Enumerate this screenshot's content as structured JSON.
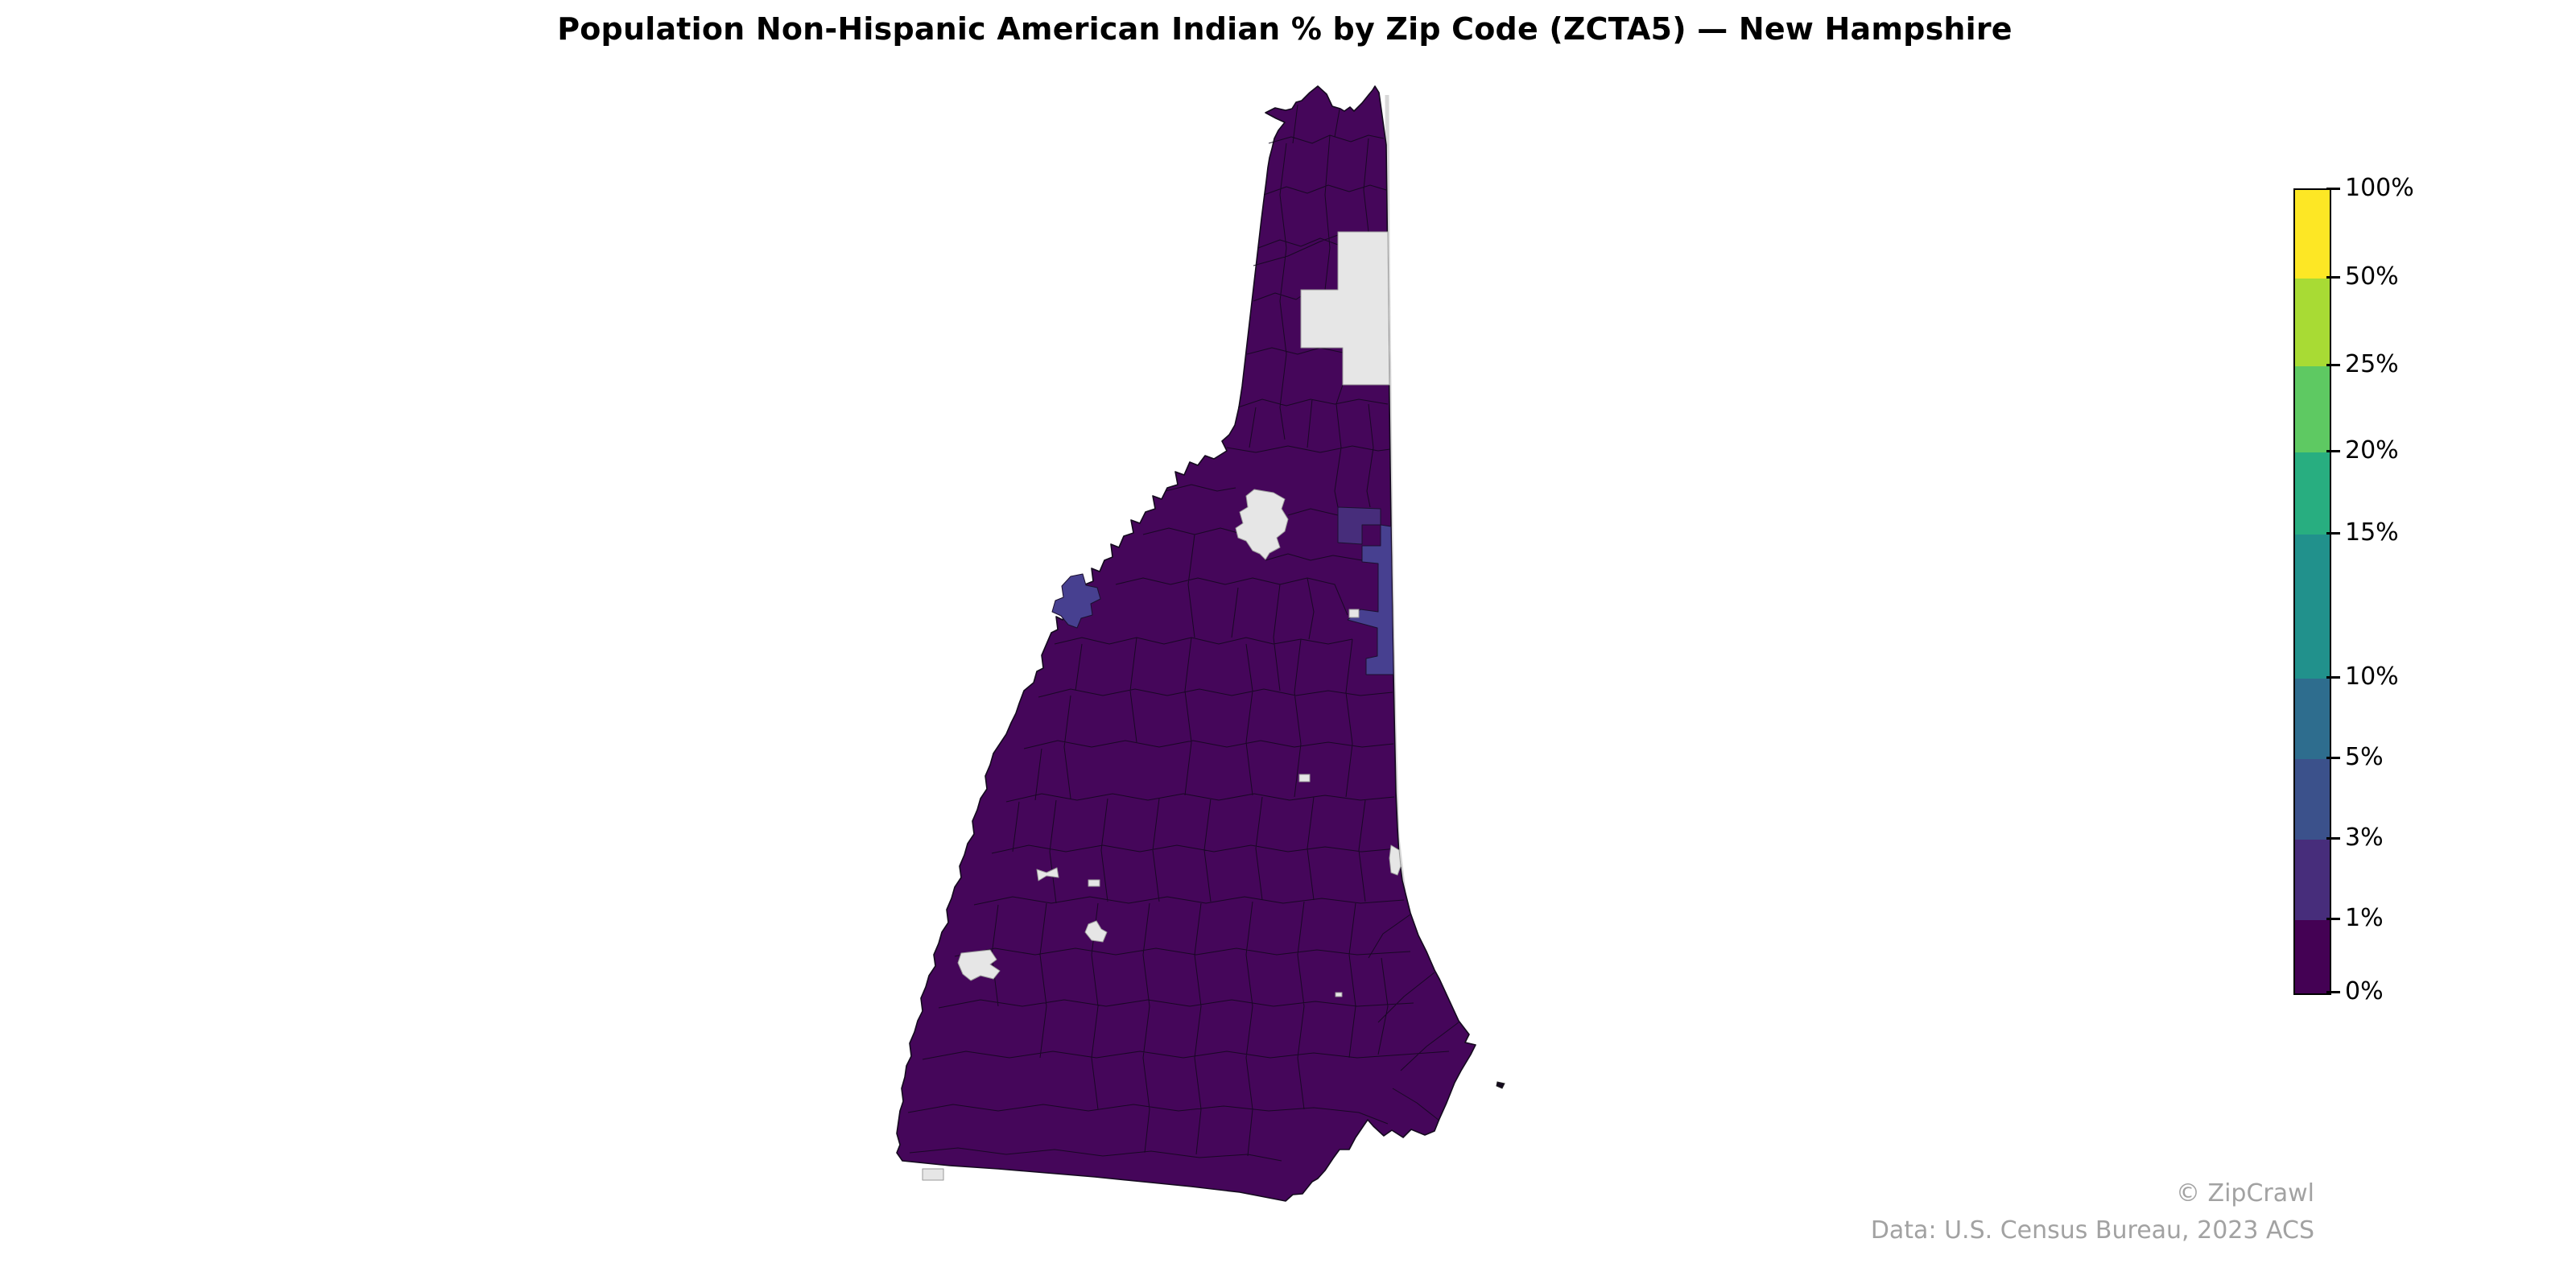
{
  "title": "Population Non-Hispanic American Indian % by Zip Code (ZCTA5) — New Hampshire",
  "credits": {
    "attribution": "© ZipCrawl",
    "source": "Data: U.S. Census Bureau, 2023 ACS"
  },
  "colors": {
    "background": "#ffffff",
    "base": "#45065a",
    "no_data": "#e6e6e6",
    "band_3_5": "#474090",
    "band_1_3": "#472d7b",
    "boundary": "#140a1e",
    "title_text": "#000000",
    "credit_text": "#a2a2a2"
  },
  "chart_data": {
    "type": "choropleth_map",
    "title": "Population Non-Hispanic American Indian % by Zip Code (ZCTA5) — New Hampshire",
    "region": "New Hampshire",
    "geography_unit": "Zip Code (ZCTA5)",
    "metric": "Population Non-Hispanic American Indian %",
    "legend": {
      "position": "right",
      "orientation": "vertical",
      "ticks": [
        "100%",
        "50%",
        "25%",
        "20%",
        "15%",
        "10%",
        "5%",
        "3%",
        "1%",
        "0%"
      ],
      "bands": [
        {
          "range": "50-100%",
          "color": "#fde725"
        },
        {
          "range": "25-50%",
          "color": "#a8db34"
        },
        {
          "range": "20-25%",
          "color": "#5ec962"
        },
        {
          "range": "15-20%",
          "color": "#28ae80"
        },
        {
          "range": "10-15%",
          "color": "#21918c"
        },
        {
          "range": "5-10%",
          "color": "#2e6d8e"
        },
        {
          "range": "3-5%",
          "color": "#3b518b"
        },
        {
          "range": "1-3%",
          "color": "#472d7b"
        },
        {
          "range": "0-1%",
          "color": "#440154"
        }
      ]
    },
    "map_observations": {
      "dominant_band": "0-1%",
      "dominant_fill": "#45065a",
      "no_data_fill": "#e6e6e6",
      "visible_features": [
        {
          "feature": "large plus-shaped no-data area",
          "location": "north, against east border",
          "band": "no data"
        },
        {
          "feature": "irregular no-data blob",
          "location": "center of state",
          "band": "no data"
        },
        {
          "feature": "vertical highlighted strip",
          "location": "east-central border",
          "band": "3-5%"
        },
        {
          "feature": "small sliver adjacent to strip",
          "location": "east-central border",
          "band": "1-3%"
        },
        {
          "feature": "small cross-shaped highlighted zcta",
          "location": "west-central border",
          "band": "3-5%"
        },
        {
          "feature": "small no-data sliver",
          "location": "east border, lower third",
          "band": "no data"
        },
        {
          "feature": "several tiny no-data specks",
          "location": "south-west and central-south",
          "band": "no data"
        },
        {
          "feature": "tiny offshore island mark",
          "location": "southeast of coast",
          "band": "0-1%"
        }
      ]
    }
  }
}
